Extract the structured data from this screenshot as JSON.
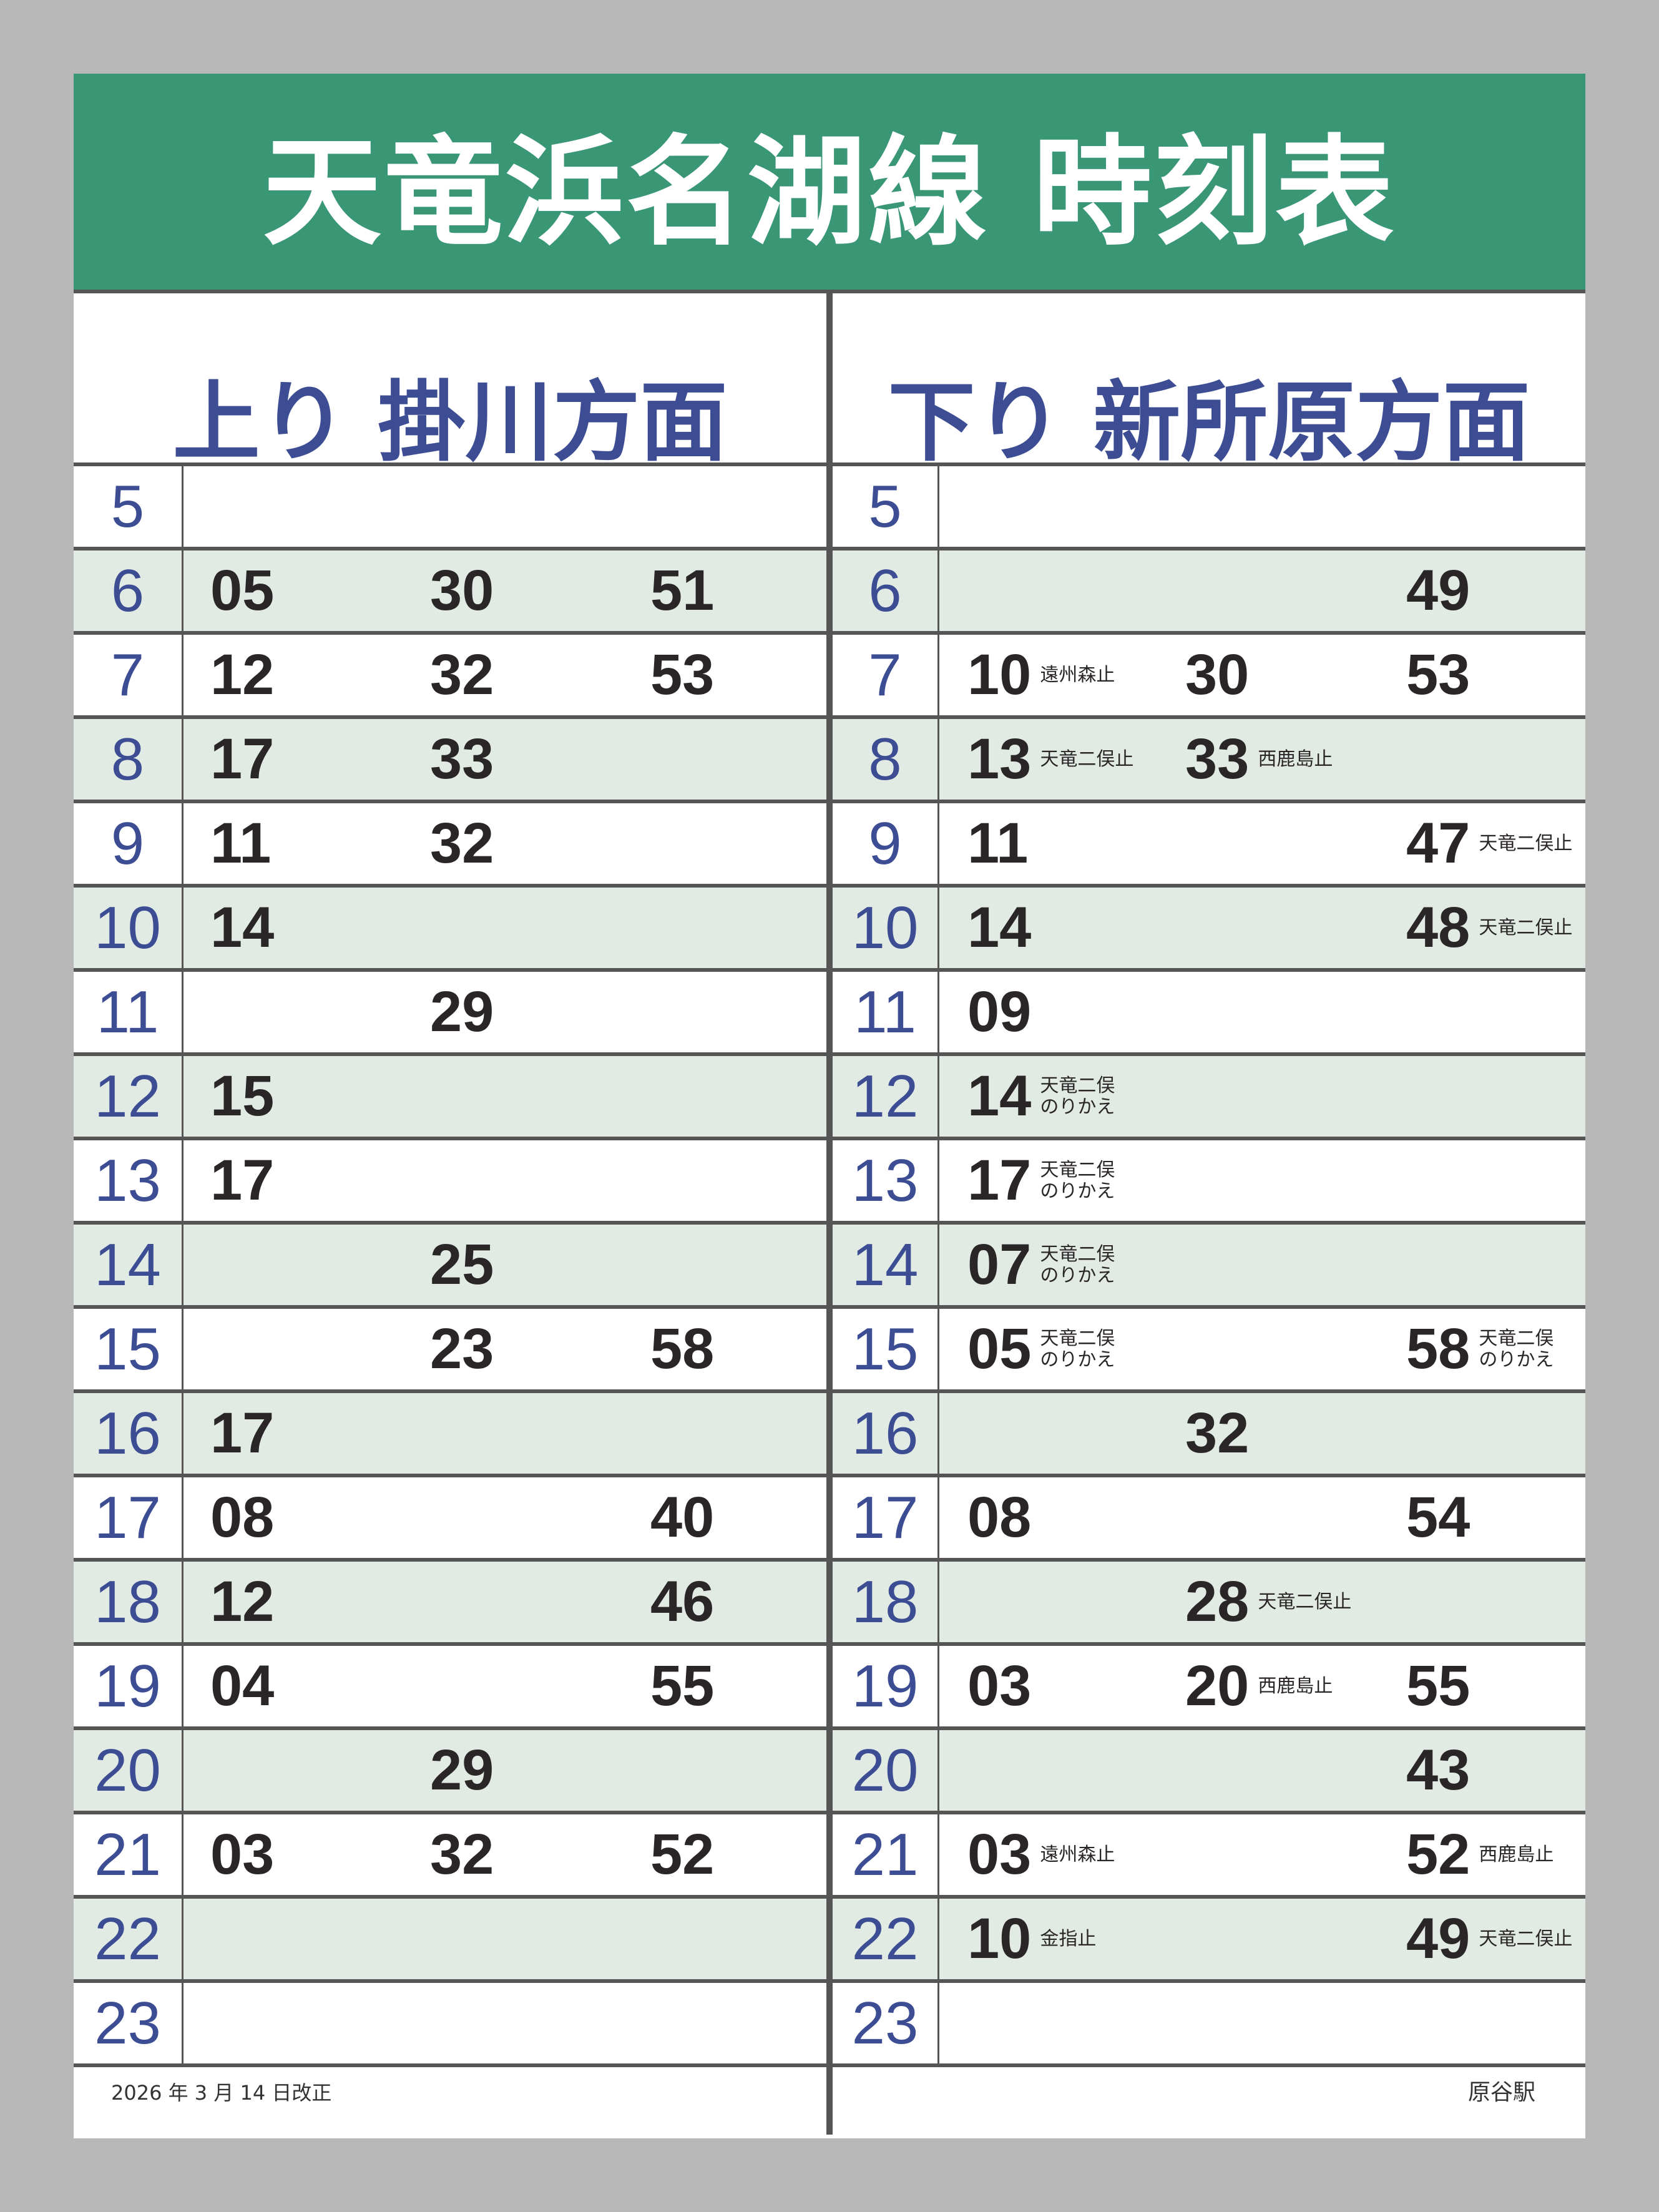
{
  "title": "天竜浜名湖線 時刻表",
  "directions": {
    "up": "上り 掛川方面",
    "down": "下り 新所原方面"
  },
  "colors": {
    "header": "#3a9775",
    "hour_text": "#3d4d93",
    "alt_row": "#e1ebe4",
    "rule": "#555555"
  },
  "rows": [
    {
      "hour": "5",
      "up": [
        null,
        null,
        null
      ],
      "down": [
        null,
        null,
        null
      ]
    },
    {
      "hour": "6",
      "up": [
        {
          "min": "05"
        },
        {
          "min": "30"
        },
        {
          "min": "51"
        }
      ],
      "down": [
        null,
        null,
        {
          "min": "49"
        }
      ]
    },
    {
      "hour": "7",
      "up": [
        {
          "min": "12"
        },
        {
          "min": "32"
        },
        {
          "min": "53"
        }
      ],
      "down": [
        {
          "min": "10",
          "note": [
            "遠州森止"
          ]
        },
        {
          "min": "30"
        },
        {
          "min": "53"
        }
      ]
    },
    {
      "hour": "8",
      "up": [
        {
          "min": "17"
        },
        {
          "min": "33"
        },
        null
      ],
      "down": [
        {
          "min": "13",
          "note": [
            "天竜二俣止"
          ]
        },
        {
          "min": "33",
          "note": [
            "西鹿島止"
          ]
        },
        null
      ]
    },
    {
      "hour": "9",
      "up": [
        {
          "min": "11"
        },
        {
          "min": "32"
        },
        null
      ],
      "down": [
        {
          "min": "11"
        },
        null,
        {
          "min": "47",
          "note": [
            "天竜二俣止"
          ]
        }
      ]
    },
    {
      "hour": "10",
      "up": [
        {
          "min": "14"
        },
        null,
        null
      ],
      "down": [
        {
          "min": "14"
        },
        null,
        {
          "min": "48",
          "note": [
            "天竜二俣止"
          ]
        }
      ]
    },
    {
      "hour": "11",
      "up": [
        null,
        {
          "min": "29"
        },
        null
      ],
      "down": [
        {
          "min": "09"
        },
        null,
        null
      ]
    },
    {
      "hour": "12",
      "up": [
        {
          "min": "15"
        },
        null,
        null
      ],
      "down": [
        {
          "min": "14",
          "note": [
            "天竜二俣",
            "のりかえ"
          ]
        },
        null,
        null
      ]
    },
    {
      "hour": "13",
      "up": [
        {
          "min": "17"
        },
        null,
        null
      ],
      "down": [
        {
          "min": "17",
          "note": [
            "天竜二俣",
            "のりかえ"
          ]
        },
        null,
        null
      ]
    },
    {
      "hour": "14",
      "up": [
        null,
        {
          "min": "25"
        },
        null
      ],
      "down": [
        {
          "min": "07",
          "note": [
            "天竜二俣",
            "のりかえ"
          ]
        },
        null,
        null
      ]
    },
    {
      "hour": "15",
      "up": [
        null,
        {
          "min": "23"
        },
        {
          "min": "58"
        }
      ],
      "down": [
        {
          "min": "05",
          "note": [
            "天竜二俣",
            "のりかえ"
          ]
        },
        null,
        {
          "min": "58",
          "note": [
            "天竜二俣",
            "のりかえ"
          ]
        }
      ]
    },
    {
      "hour": "16",
      "up": [
        {
          "min": "17"
        },
        null,
        null
      ],
      "down": [
        null,
        {
          "min": "32"
        },
        null
      ]
    },
    {
      "hour": "17",
      "up": [
        {
          "min": "08"
        },
        null,
        {
          "min": "40"
        }
      ],
      "down": [
        {
          "min": "08"
        },
        null,
        {
          "min": "54"
        }
      ]
    },
    {
      "hour": "18",
      "up": [
        {
          "min": "12"
        },
        null,
        {
          "min": "46"
        }
      ],
      "down": [
        null,
        {
          "min": "28",
          "note": [
            "天竜二俣止"
          ]
        },
        null
      ]
    },
    {
      "hour": "19",
      "up": [
        {
          "min": "04"
        },
        null,
        {
          "min": "55"
        }
      ],
      "down": [
        {
          "min": "03"
        },
        {
          "min": "20",
          "note": [
            "西鹿島止"
          ]
        },
        {
          "min": "55"
        }
      ]
    },
    {
      "hour": "20",
      "up": [
        null,
        {
          "min": "29"
        },
        null
      ],
      "down": [
        null,
        null,
        {
          "min": "43"
        }
      ]
    },
    {
      "hour": "21",
      "up": [
        {
          "min": "03"
        },
        {
          "min": "32"
        },
        {
          "min": "52"
        }
      ],
      "down": [
        {
          "min": "03",
          "note": [
            "遠州森止"
          ]
        },
        null,
        {
          "min": "52",
          "note": [
            "西鹿島止"
          ]
        }
      ]
    },
    {
      "hour": "22",
      "up": [
        null,
        null,
        null
      ],
      "down": [
        {
          "min": "10",
          "note": [
            "金指止"
          ]
        },
        null,
        {
          "min": "49",
          "note": [
            "天竜二俣止"
          ]
        }
      ]
    },
    {
      "hour": "23",
      "up": [
        null,
        null,
        null
      ],
      "down": [
        null,
        null,
        null
      ]
    }
  ],
  "footer": {
    "revised": "2026 年 3 月 14 日改正",
    "station": "原谷駅"
  }
}
